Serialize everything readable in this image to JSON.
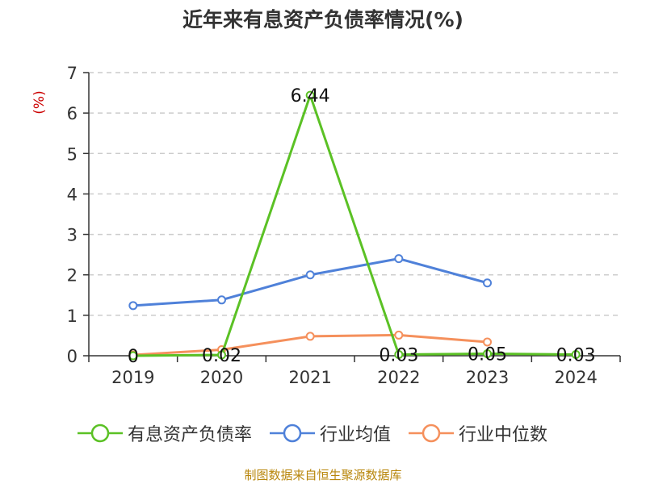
{
  "title": "近年来有息资产负债率情况(%)",
  "source": "制图数据来自恒生聚源数据库",
  "chart_data": {
    "type": "line",
    "title": "近年来有息资产负债率情况(%)",
    "ylabel": "(%)",
    "xlabel": "",
    "categories": [
      "2019",
      "2020",
      "2021",
      "2022",
      "2023",
      "2024"
    ],
    "ylim": [
      0,
      7
    ],
    "yticks": [
      "0",
      "1",
      "2",
      "3",
      "4",
      "5",
      "6",
      "7"
    ],
    "grid": true,
    "legend_position": "bottom",
    "series": [
      {
        "name": "有息资产负债率",
        "color": "#5bc125",
        "values": [
          0,
          0.02,
          6.44,
          0.03,
          0.05,
          0.03
        ],
        "data_labels": [
          "0",
          "0.02",
          "6.44",
          "0.03",
          "0.05",
          "0.03"
        ]
      },
      {
        "name": "行业均值",
        "color": "#4f81d9",
        "values": [
          1.24,
          1.38,
          2.0,
          2.4,
          1.8,
          null
        ]
      },
      {
        "name": "行业中位数",
        "color": "#f5905c",
        "values": [
          0.02,
          0.15,
          0.48,
          0.51,
          0.34,
          null
        ]
      }
    ]
  }
}
